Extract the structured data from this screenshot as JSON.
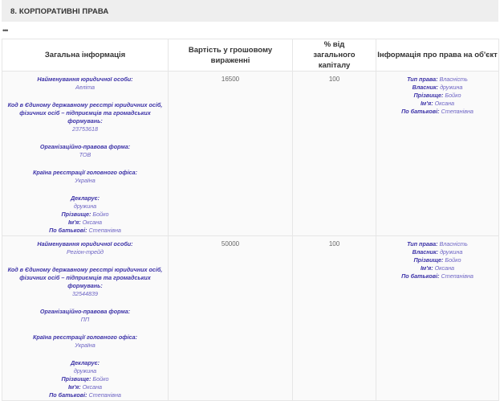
{
  "section": {
    "title": "8.  КОРПОРАТИВНІ ПРАВА",
    "more": "•••"
  },
  "columns": [
    "Загальна інформація",
    "Вартість у грошовому вираженні",
    "% від загального капіталу",
    "Інформація про права на об'єкт"
  ],
  "labels": {
    "name": "Найменування юридичної особи:",
    "code": "Код в Єдиному державному реєстрі юридичних осіб, фізичних осіб – підприємців та громадських формувань:",
    "form": "Організаційно-правова форма:",
    "country": "Країна реєстрації головного офіса:",
    "declarant": "Декларує:",
    "surname": "Прізвище:",
    "firstname": "Ім'я:",
    "patronymic": "По батькові:",
    "right_type": "Тип права:",
    "owner": "Власник:"
  },
  "rows": [
    {
      "name": "Аеліта",
      "code": "23753618",
      "form": "ТОВ",
      "country": "Україна",
      "declarant": "дружина",
      "surname": "Бойко",
      "firstname": "Оксана",
      "patronymic": "Степанівна",
      "value": "16500",
      "percent": "100",
      "right_type": "Власність",
      "owner": "дружина"
    },
    {
      "name": "Регіон-трейд",
      "code": "32544839",
      "form": "ПП",
      "country": "Україна",
      "declarant": "дружина",
      "surname": "Бойко",
      "firstname": "Оксана",
      "patronymic": "Степанівна",
      "value": "50000",
      "percent": "100",
      "right_type": "Власність",
      "owner": "дружина"
    }
  ],
  "colors": {
    "label": "#3d33a8",
    "value": "#6c63c4",
    "header_bar": "#eeeeee"
  }
}
